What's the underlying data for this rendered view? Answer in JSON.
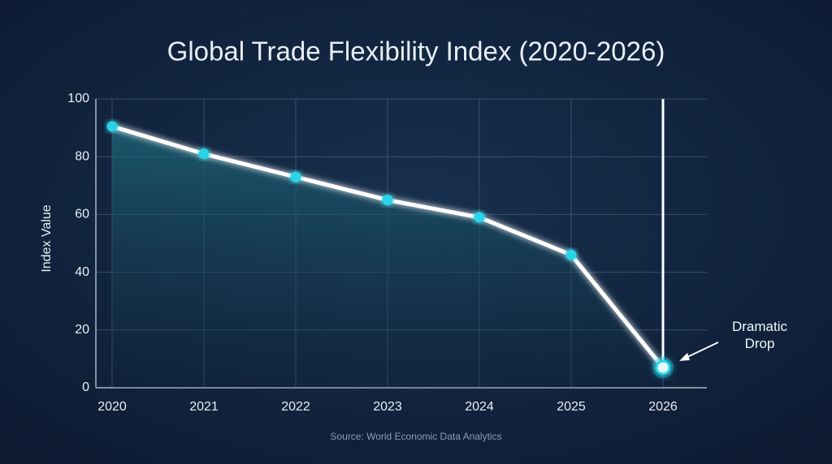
{
  "chart_data": {
    "type": "line",
    "title": "Global Trade Flexibility Index (2020-2026)",
    "y_label": "Index Value",
    "source": "Source: World Economic Data Analytics",
    "annotation": "Dramatic Drop",
    "categories": [
      "2020",
      "2021",
      "2022",
      "2023",
      "2024",
      "2025",
      "2026"
    ],
    "values": [
      90.5,
      81,
      73,
      65,
      59,
      46,
      7
    ],
    "color": "#ffffff",
    "marker_color": "#2ad4e6",
    "ylim": [
      0,
      100
    ],
    "yticks": [
      0,
      20,
      40,
      60,
      80,
      100
    ],
    "grid": true
  }
}
